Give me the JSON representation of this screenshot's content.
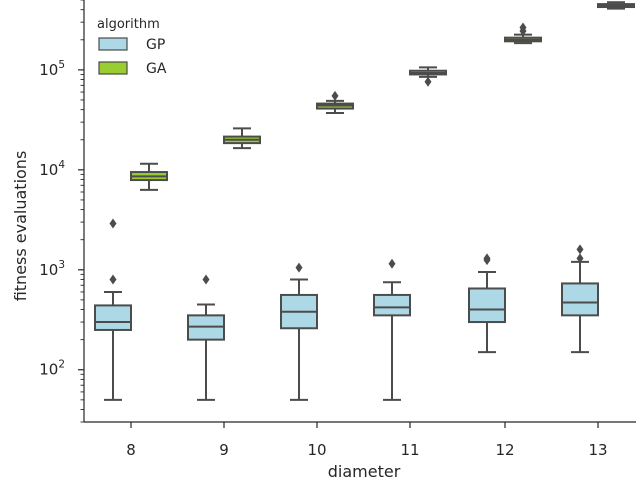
{
  "chart_data": {
    "type": "box",
    "xlabel": "diameter",
    "ylabel": "fitness evaluations",
    "yscale": "log",
    "ylim": [
      30,
      500000
    ],
    "yticks": [
      {
        "value": 100,
        "base": "10",
        "exp": "2"
      },
      {
        "value": 1000,
        "base": "10",
        "exp": "3"
      },
      {
        "value": 10000,
        "base": "10",
        "exp": "4"
      },
      {
        "value": 100000,
        "base": "10",
        "exp": "5"
      }
    ],
    "categories": [
      "8",
      "9",
      "10",
      "11",
      "12",
      "13"
    ],
    "legend": {
      "title": "algorithm",
      "placement": "top-left"
    },
    "series": [
      {
        "name": "GP",
        "color": "#add8e6",
        "boxes": [
          {
            "whislo": 50,
            "q1": 250,
            "med": 300,
            "q3": 440,
            "whishi": 600,
            "fliers": [
              800,
              2900
            ]
          },
          {
            "whislo": 50,
            "q1": 200,
            "med": 270,
            "q3": 350,
            "whishi": 450,
            "fliers": [
              800
            ]
          },
          {
            "whislo": 50,
            "q1": 260,
            "med": 380,
            "q3": 560,
            "whishi": 800,
            "fliers": [
              1050
            ]
          },
          {
            "whislo": 50,
            "q1": 350,
            "med": 420,
            "q3": 560,
            "whishi": 750,
            "fliers": [
              1150
            ]
          },
          {
            "whislo": 150,
            "q1": 300,
            "med": 400,
            "q3": 650,
            "whishi": 950,
            "fliers": [
              1250,
              1300
            ]
          },
          {
            "whislo": 150,
            "q1": 350,
            "med": 470,
            "q3": 730,
            "whishi": 1200,
            "fliers": [
              1300,
              1600
            ]
          }
        ]
      },
      {
        "name": "GA",
        "color": "#9acd32",
        "boxes": [
          {
            "whislo": 6300,
            "q1": 7900,
            "med": 8600,
            "q3": 9500,
            "whishi": 11500,
            "fliers": []
          },
          {
            "whislo": 16500,
            "q1": 18500,
            "med": 20000,
            "q3": 21500,
            "whishi": 26000,
            "fliers": []
          },
          {
            "whislo": 37000,
            "q1": 41000,
            "med": 44000,
            "q3": 46000,
            "whishi": 49000,
            "fliers": [
              55000
            ]
          },
          {
            "whislo": 85000,
            "q1": 90000,
            "med": 93000,
            "q3": 98000,
            "whishi": 106000,
            "fliers": [
              76000
            ]
          },
          {
            "whislo": 185000,
            "q1": 193000,
            "med": 200000,
            "q3": 210000,
            "whishi": 225000,
            "fliers": [
              245000,
              265000
            ]
          },
          {
            "whislo": 410000,
            "q1": 425000,
            "med": 440000,
            "q3": 455000,
            "whishi": 475000,
            "fliers": []
          }
        ]
      }
    ]
  }
}
